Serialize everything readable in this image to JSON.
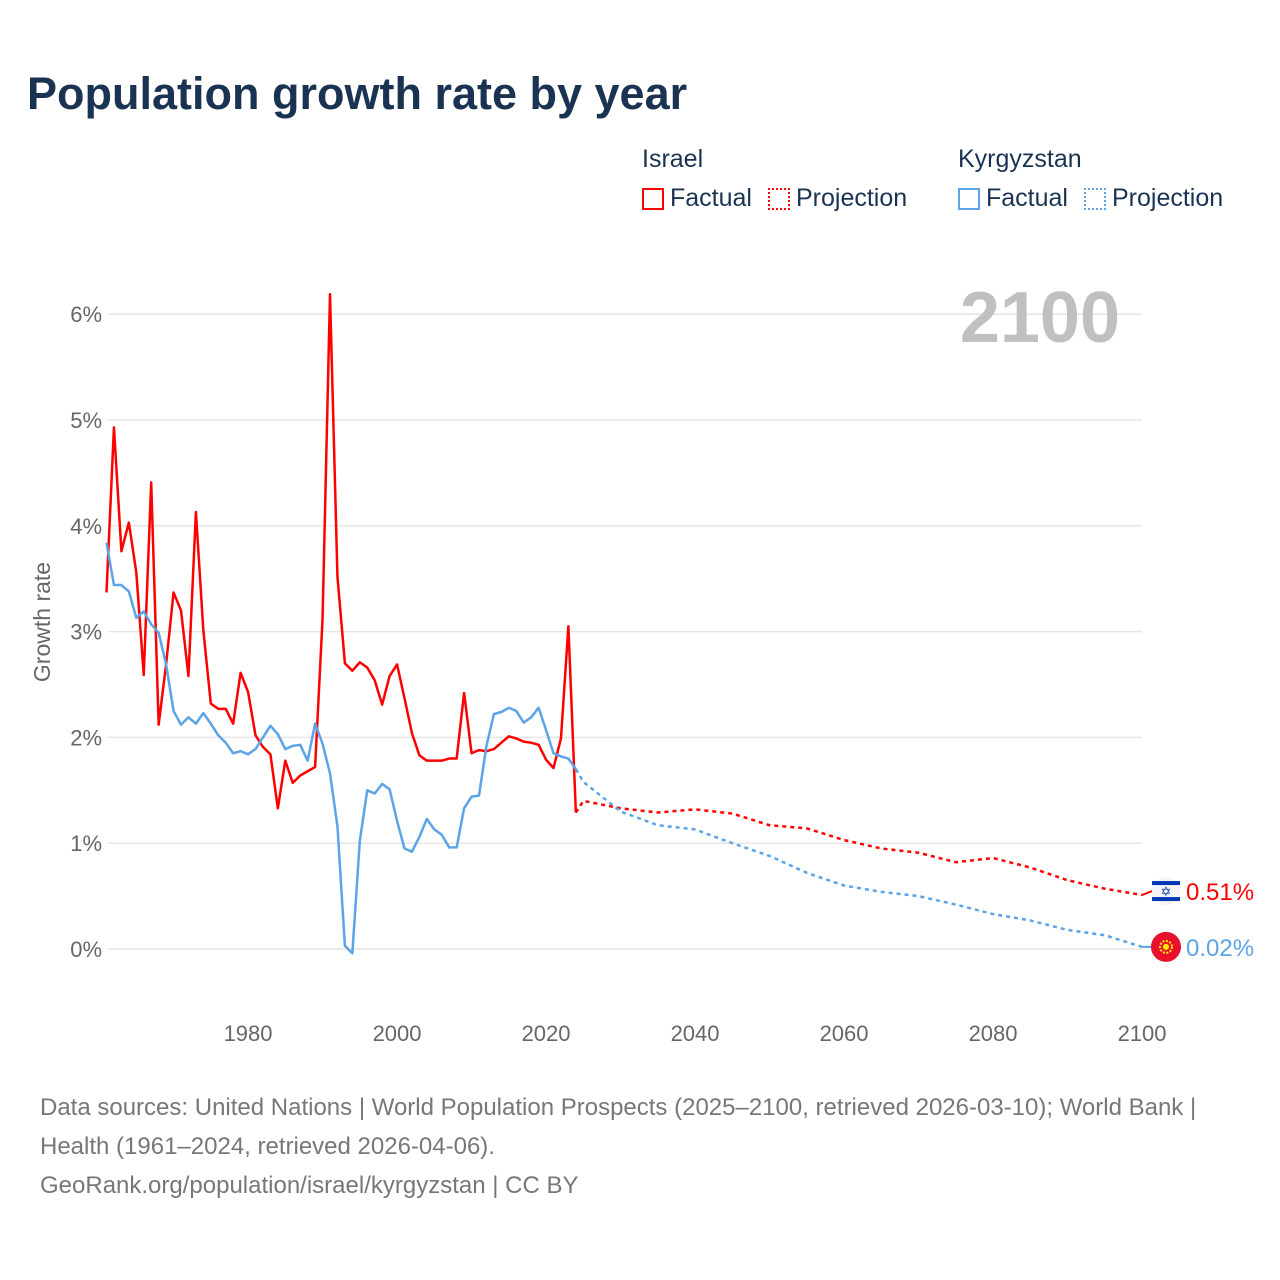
{
  "title": "Population growth rate by year",
  "legend": {
    "israel": {
      "name": "Israel",
      "factual": "Factual",
      "projection": "Projection"
    },
    "kyrgyzstan": {
      "name": "Kyrgyzstan",
      "factual": "Factual",
      "projection": "Projection"
    }
  },
  "footer": {
    "sources": "Data sources: United Nations | World Population Prospects (2025–2100, retrieved 2026-03-10); World Bank | Health (1961–2024, retrieved 2026-04-06).",
    "credit": "GeoRank.org/population/israel/kyrgyzstan | CC BY"
  },
  "chart_data": {
    "type": "line",
    "title": "Population growth rate by year",
    "ylabel": "Growth rate",
    "xlabel": "",
    "year_label": "2100",
    "xlim": [
      1961,
      2100
    ],
    "ylim": [
      -0.6,
      6.3
    ],
    "x_ticks": [
      1980,
      2000,
      2020,
      2040,
      2060,
      2080,
      2100
    ],
    "x_tick_labels": [
      "1980",
      "2000",
      "2020",
      "2040",
      "2060",
      "2080",
      "2100"
    ],
    "y_ticks": [
      0,
      1,
      2,
      3,
      4,
      5,
      6
    ],
    "y_tick_labels": [
      "0%",
      "1%",
      "2%",
      "3%",
      "4%",
      "5%",
      "6%"
    ],
    "grid": true,
    "legend_position": "top-right",
    "series": [
      {
        "name": "Israel",
        "color": "#ff0000",
        "end_label": "0.51%",
        "factual_start": 1961,
        "factual": [
          3.37,
          4.93,
          3.76,
          4.03,
          3.56,
          2.59,
          4.41,
          2.12,
          2.69,
          3.37,
          3.2,
          2.58,
          4.13,
          3.01,
          2.32,
          2.27,
          2.27,
          2.13,
          2.61,
          2.43,
          2.02,
          1.91,
          1.84,
          1.33,
          1.78,
          1.57,
          1.64,
          1.68,
          1.72,
          3.12,
          6.19,
          3.52,
          2.7,
          2.63,
          2.71,
          2.66,
          2.54,
          2.31,
          2.58,
          2.69,
          2.37,
          2.04,
          1.83,
          1.78,
          1.78,
          1.78,
          1.8,
          1.8,
          2.42,
          1.85,
          1.88,
          1.87,
          1.89,
          1.95,
          2.01,
          1.99,
          1.96,
          1.95,
          1.93,
          1.79,
          1.71,
          1.99,
          3.05,
          1.29
        ],
        "projection_years": [
          2024,
          2025,
          2030,
          2035,
          2040,
          2045,
          2050,
          2055,
          2060,
          2065,
          2070,
          2075,
          2080,
          2085,
          2090,
          2095,
          2100
        ],
        "projection": [
          1.29,
          1.4,
          1.33,
          1.29,
          1.32,
          1.28,
          1.17,
          1.14,
          1.03,
          0.95,
          0.91,
          0.82,
          0.86,
          0.77,
          0.65,
          0.57,
          0.51
        ]
      },
      {
        "name": "Kyrgyzstan",
        "color": "#5ba4e8",
        "end_label": "0.02%",
        "factual_start": 1961,
        "factual": [
          3.84,
          3.44,
          3.44,
          3.38,
          3.13,
          3.19,
          3.07,
          2.99,
          2.69,
          2.25,
          2.12,
          2.19,
          2.13,
          2.23,
          2.13,
          2.02,
          1.95,
          1.85,
          1.87,
          1.84,
          1.89,
          2.0,
          2.11,
          2.03,
          1.89,
          1.92,
          1.93,
          1.78,
          2.13,
          1.94,
          1.66,
          1.16,
          0.03,
          -0.04,
          1.02,
          1.5,
          1.47,
          1.56,
          1.51,
          1.21,
          0.95,
          0.92,
          1.06,
          1.23,
          1.13,
          1.08,
          0.96,
          0.96,
          1.33,
          1.44,
          1.45,
          1.92,
          2.22,
          2.24,
          2.28,
          2.25,
          2.14,
          2.19,
          2.28,
          2.07,
          1.85,
          1.82,
          1.8,
          1.7
        ],
        "projection_years": [
          2024,
          2025,
          2030,
          2035,
          2040,
          2045,
          2050,
          2055,
          2060,
          2065,
          2070,
          2075,
          2080,
          2085,
          2090,
          2095,
          2100
        ],
        "projection": [
          1.7,
          1.58,
          1.3,
          1.17,
          1.13,
          1.0,
          0.88,
          0.72,
          0.6,
          0.54,
          0.5,
          0.42,
          0.33,
          0.27,
          0.18,
          0.13,
          0.02
        ]
      }
    ]
  }
}
